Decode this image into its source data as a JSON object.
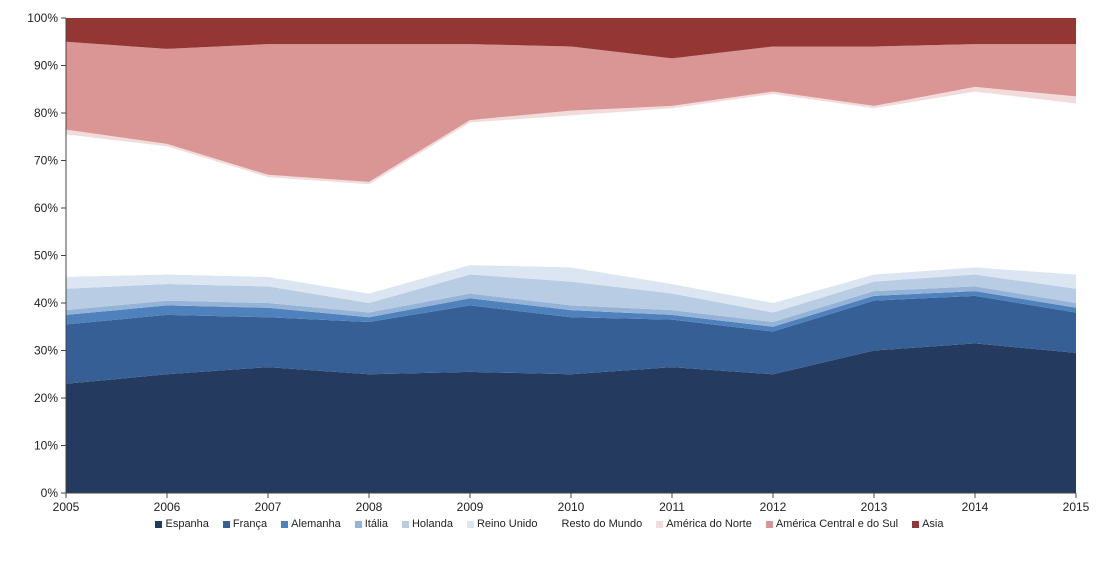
{
  "chart_data": {
    "type": "area",
    "stacked": true,
    "x": [
      2005,
      2006,
      2007,
      2008,
      2009,
      2010,
      2011,
      2012,
      2013,
      2014,
      2015
    ],
    "ylim": [
      0,
      100
    ],
    "ytick_labels": [
      "0%",
      "10%",
      "20%",
      "30%",
      "40%",
      "50%",
      "60%",
      "70%",
      "80%",
      "90%",
      "100%"
    ],
    "xtick_labels": [
      "2005",
      "2006",
      "2007",
      "2008",
      "2009",
      "2010",
      "2011",
      "2012",
      "2013",
      "2014",
      "2015"
    ],
    "grid": false,
    "legend_position": "bottom",
    "series": [
      {
        "name": "Espanha",
        "color": "#243a5e",
        "values": [
          23,
          25,
          26.5,
          25,
          25.5,
          25,
          26.5,
          25,
          30,
          31.5,
          29.5
        ]
      },
      {
        "name": "França",
        "color": "#365f96",
        "values": [
          12.5,
          12.5,
          10.5,
          11,
          14,
          12,
          10,
          9,
          10.5,
          10,
          8.5
        ]
      },
      {
        "name": "Alemanha",
        "color": "#4f81bd",
        "values": [
          2,
          2,
          2,
          1,
          1.5,
          1.5,
          1,
          1,
          1,
          1,
          1
        ]
      },
      {
        "name": "Itália",
        "color": "#95b3d7",
        "values": [
          1,
          1,
          1,
          1,
          1,
          1,
          1,
          1,
          1,
          1,
          1
        ]
      },
      {
        "name": "Holanda",
        "color": "#b8cce4",
        "values": [
          4.5,
          3.5,
          3.5,
          2,
          4,
          5,
          3.5,
          2,
          2,
          2.5,
          3
        ]
      },
      {
        "name": "Reino Unido",
        "color": "#dce6f2",
        "values": [
          2.5,
          2,
          2,
          2,
          2,
          3,
          2,
          2,
          1.5,
          1.5,
          3
        ]
      },
      {
        "name": "Resto do Mundo",
        "color": "#ffffff",
        "values": [
          30,
          27,
          21,
          23,
          30,
          32,
          37,
          44,
          35,
          37,
          36
        ]
      },
      {
        "name": "América do Norte",
        "color": "#f2dcdb",
        "values": [
          1,
          0.5,
          0.5,
          0.5,
          0.5,
          1,
          0.5,
          0.5,
          0.5,
          1,
          1.5
        ]
      },
      {
        "name": "América Central e do Sul",
        "color": "#d99694",
        "values": [
          18.5,
          20,
          27.5,
          29,
          16,
          13.5,
          10,
          9.5,
          12.5,
          9,
          11
        ]
      },
      {
        "name": "Asia",
        "color": "#943634",
        "values": [
          5,
          6.5,
          5.5,
          5.5,
          5.5,
          6,
          8,
          5.5,
          6,
          5.5,
          5
        ]
      }
    ]
  }
}
